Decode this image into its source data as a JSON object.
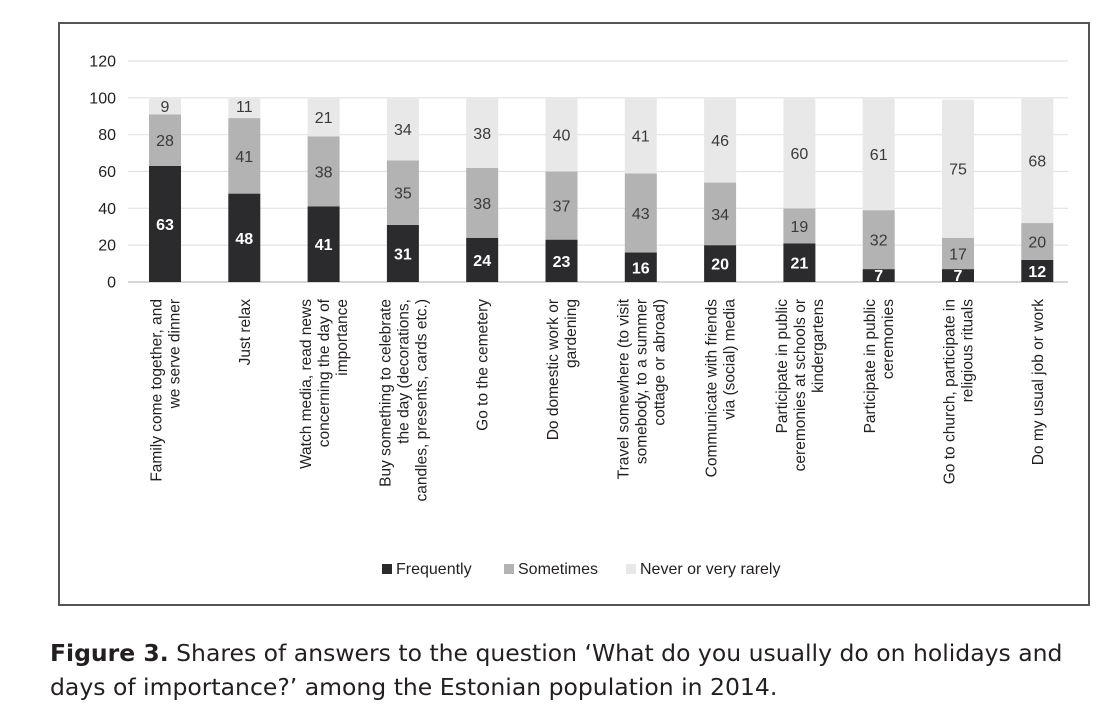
{
  "chart_data": {
    "type": "bar",
    "stacked": true,
    "categories": [
      [
        "Family come together, and",
        "we serve dinner"
      ],
      [
        "Just relax"
      ],
      [
        "Watch media, read news",
        "concerning the day of",
        "importance"
      ],
      [
        "Buy something to celebrate",
        "the day (decorations,",
        "candles, presents, cards etc.)"
      ],
      [
        "Go to the cemetery"
      ],
      [
        "Do domestic work or",
        "gardening"
      ],
      [
        "Travel somewhere (to visit",
        "somebody, to a summer",
        "cottage or abroad)"
      ],
      [
        "Communicate with friends",
        "via (social) media"
      ],
      [
        "Participate in public",
        "ceremonies at schools or",
        "kindergartens"
      ],
      [
        "Participate in public",
        "ceremonies"
      ],
      [
        "Go to church, participate in",
        "religious rituals"
      ],
      [
        "Do my usual job or work"
      ]
    ],
    "series": [
      {
        "name": "Frequently",
        "color": "#2b2b2e",
        "label_color": "#ffffff",
        "values": [
          63,
          48,
          41,
          31,
          24,
          23,
          16,
          20,
          21,
          7,
          7,
          12
        ]
      },
      {
        "name": "Sometimes",
        "color": "#b3b3b3",
        "label_color": "#3a3a3a",
        "values": [
          28,
          41,
          38,
          35,
          38,
          37,
          43,
          34,
          19,
          32,
          17,
          20
        ]
      },
      {
        "name": "Never or very rarely",
        "color": "#e8e8e8",
        "label_color": "#3a3a3a",
        "values": [
          9,
          11,
          21,
          34,
          38,
          40,
          41,
          46,
          60,
          61,
          75,
          68
        ]
      }
    ],
    "yticks": [
      0,
      20,
      40,
      60,
      80,
      100,
      120
    ],
    "ylim": [
      0,
      120
    ],
    "grid": true,
    "legend": "bottom-center"
  },
  "caption": {
    "label": "Figure 3.",
    "text": "Shares of answers to the question ‘What do you usually do on holidays and days of importance?’ among the Estonian population in 2014."
  }
}
